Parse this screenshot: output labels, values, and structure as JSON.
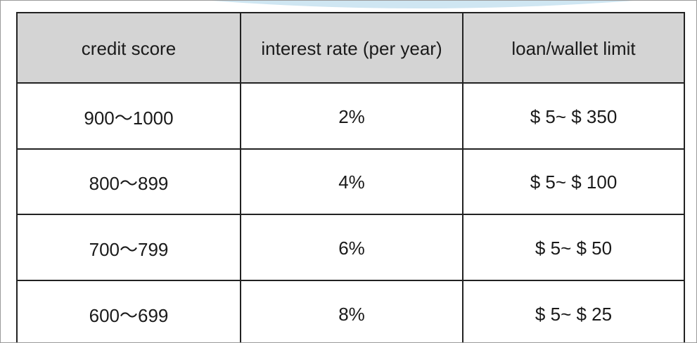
{
  "table": {
    "header": [
      "credit score",
      "interest rate (per year)",
      "loan/wallet limit"
    ],
    "rows": [
      [
        "900～1000",
        "2%",
        "$ 5~ $ 350"
      ],
      [
        "800～899",
        "4%",
        "$ 5~ $ 100"
      ],
      [
        "700～799",
        "6%",
        "$ 5~ $ 50"
      ],
      [
        "600～699",
        "8%",
        "$ 5~ $ 25"
      ]
    ]
  }
}
